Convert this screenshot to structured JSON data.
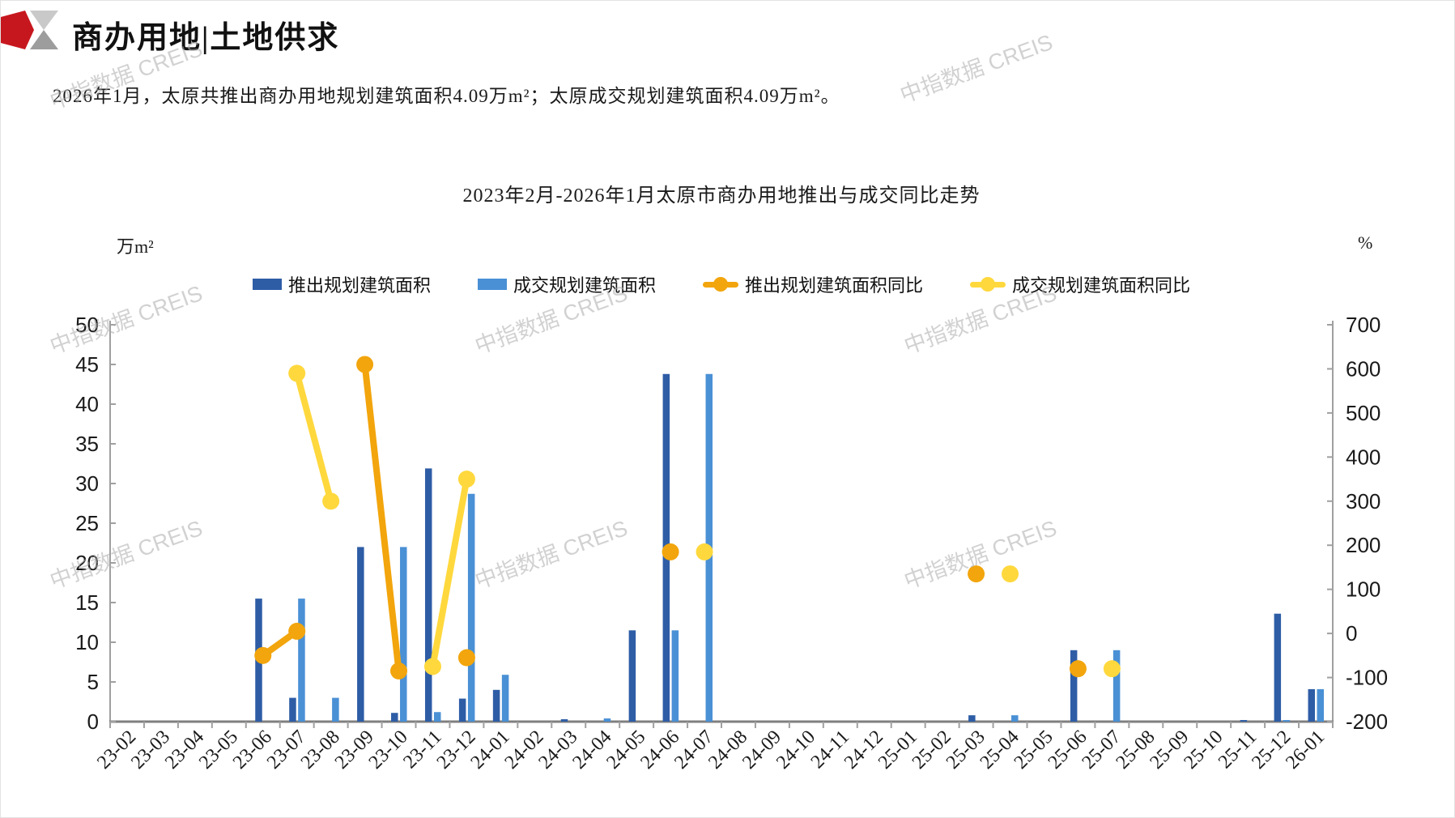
{
  "page": {
    "header": {
      "title": "商办用地|土地供求"
    },
    "subtitle": "2026年1月，太原共推出商办用地规划建筑面积4.09万m²；太原成交规划建筑面积4.09万m²。",
    "watermark": "中指数据 CREIS",
    "logo_colors": {
      "red": "#c7171e",
      "gray_light": "#c9c9c9",
      "gray_dark": "#9d9d9d"
    }
  },
  "chart_data": {
    "type": "bar",
    "subtype": "combo-bar-line-dual-axis",
    "title": "2023年2月-2026年1月太原市商办用地推出与成交同比走势",
    "left_axis": {
      "unit": "万m²",
      "min": 0,
      "max": 50,
      "step": 5
    },
    "right_axis": {
      "unit": "%",
      "min": -200,
      "max": 700,
      "step": 100
    },
    "grid": "off",
    "legend_position": "top-center",
    "categories": [
      "23-02",
      "23-03",
      "23-04",
      "23-05",
      "23-06",
      "23-07",
      "23-08",
      "23-09",
      "23-10",
      "23-11",
      "23-12",
      "24-01",
      "24-02",
      "24-03",
      "24-04",
      "24-05",
      "24-06",
      "24-07",
      "24-08",
      "24-09",
      "24-10",
      "24-11",
      "24-12",
      "25-01",
      "25-02",
      "25-03",
      "25-04",
      "25-05",
      "25-06",
      "25-07",
      "25-08",
      "25-09",
      "25-10",
      "25-11",
      "25-12",
      "26-01"
    ],
    "series": [
      {
        "name": "推出规划建筑面积",
        "type": "bar",
        "axis": "left",
        "color": "#2e5da6",
        "values": [
          null,
          null,
          null,
          null,
          15.5,
          3,
          null,
          22,
          1.1,
          31.9,
          2.9,
          4,
          null,
          0.3,
          null,
          11.5,
          43.8,
          null,
          null,
          null,
          null,
          null,
          null,
          null,
          null,
          0.8,
          null,
          null,
          9,
          null,
          null,
          null,
          null,
          0.2,
          13.6,
          4.09
        ]
      },
      {
        "name": "成交规划建筑面积",
        "type": "bar",
        "axis": "left",
        "color": "#4a90d5",
        "values": [
          null,
          null,
          null,
          null,
          null,
          15.5,
          3,
          null,
          22,
          1.2,
          28.7,
          5.9,
          null,
          null,
          0.4,
          null,
          11.5,
          43.8,
          null,
          null,
          null,
          null,
          null,
          null,
          null,
          null,
          0.8,
          null,
          null,
          9,
          null,
          null,
          null,
          null,
          0.2,
          4.09
        ]
      },
      {
        "name": "推出规划建筑面积同比",
        "type": "line",
        "axis": "right",
        "color": "#f2a50c",
        "values": [
          null,
          null,
          null,
          null,
          -50,
          5,
          null,
          610,
          -85,
          null,
          -55,
          null,
          null,
          null,
          null,
          null,
          185,
          null,
          null,
          null,
          null,
          null,
          null,
          null,
          null,
          135,
          null,
          null,
          -80,
          null,
          null,
          null,
          null,
          null,
          null,
          null
        ]
      },
      {
        "name": "成交规划建筑面积同比",
        "type": "line",
        "axis": "right",
        "color": "#ffd83d",
        "values": [
          null,
          null,
          null,
          null,
          null,
          590,
          300,
          null,
          null,
          -75,
          350,
          null,
          null,
          null,
          null,
          null,
          null,
          185,
          null,
          null,
          null,
          null,
          null,
          null,
          null,
          null,
          135,
          null,
          null,
          -80,
          null,
          null,
          null,
          null,
          null,
          null
        ]
      }
    ],
    "axis_colors": {
      "axis_line": "#a0a0a0",
      "baseline": "#7f7f7f",
      "tick_label": "#1a1a1a"
    }
  }
}
